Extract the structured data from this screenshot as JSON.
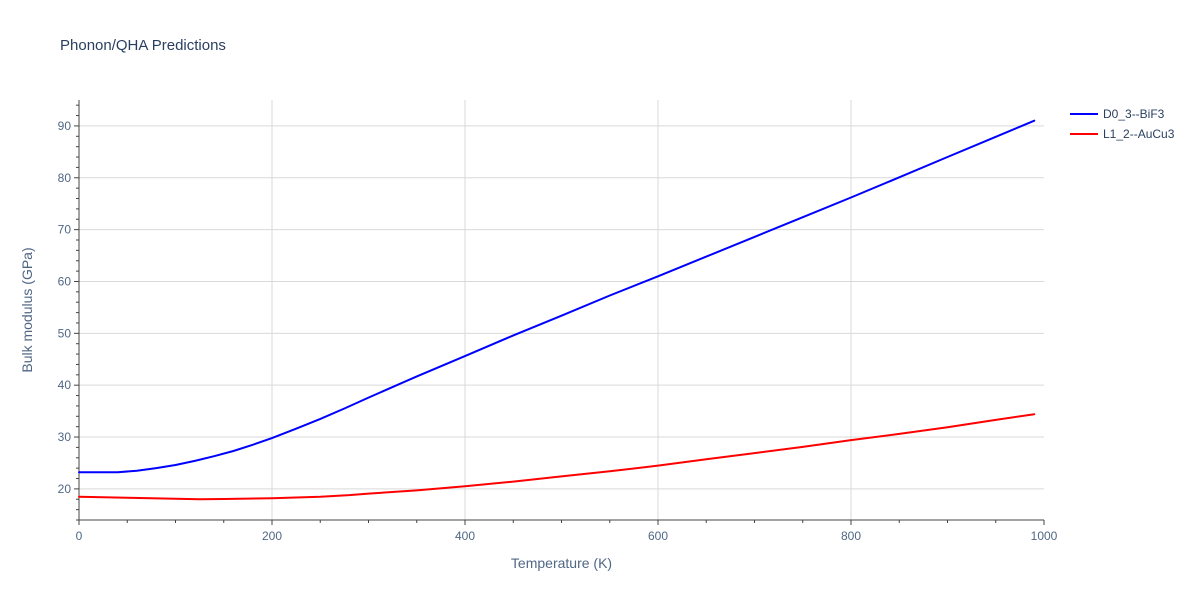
{
  "chart_data": {
    "type": "line",
    "title": "Phonon/QHA Predictions",
    "xlabel": "Temperature (K)",
    "ylabel": "Bulk modulus (GPa)",
    "xlim": [
      0,
      1000
    ],
    "ylim": [
      14,
      95
    ],
    "x_ticks": [
      0,
      200,
      400,
      600,
      800,
      1000
    ],
    "y_ticks": [
      20,
      30,
      40,
      50,
      60,
      70,
      80,
      90
    ],
    "grid": true,
    "legend_position": "top-right",
    "series": [
      {
        "name": "D0_3--BiF3",
        "color": "#0000ff",
        "x": [
          0,
          20,
          40,
          60,
          80,
          100,
          120,
          140,
          160,
          180,
          200,
          225,
          250,
          275,
          300,
          350,
          400,
          450,
          500,
          550,
          600,
          650,
          700,
          750,
          800,
          850,
          900,
          950,
          990
        ],
        "y": [
          23.2,
          23.2,
          23.2,
          23.5,
          24.0,
          24.6,
          25.4,
          26.3,
          27.3,
          28.5,
          29.8,
          31.6,
          33.5,
          35.5,
          37.6,
          41.7,
          45.6,
          49.6,
          53.4,
          57.3,
          61.0,
          64.8,
          68.6,
          72.4,
          76.2,
          80.1,
          84.0,
          87.9,
          91.0
        ]
      },
      {
        "name": "L1_2--AuCu3",
        "color": "#ff0000",
        "x": [
          0,
          50,
          100,
          125,
          150,
          200,
          250,
          280,
          300,
          350,
          400,
          450,
          500,
          550,
          600,
          650,
          700,
          750,
          800,
          850,
          900,
          950,
          990
        ],
        "y": [
          18.5,
          18.3,
          18.1,
          18.0,
          18.05,
          18.2,
          18.5,
          18.8,
          19.1,
          19.7,
          20.5,
          21.4,
          22.4,
          23.4,
          24.5,
          25.7,
          26.9,
          28.1,
          29.4,
          30.6,
          31.9,
          33.3,
          34.4
        ]
      }
    ]
  }
}
